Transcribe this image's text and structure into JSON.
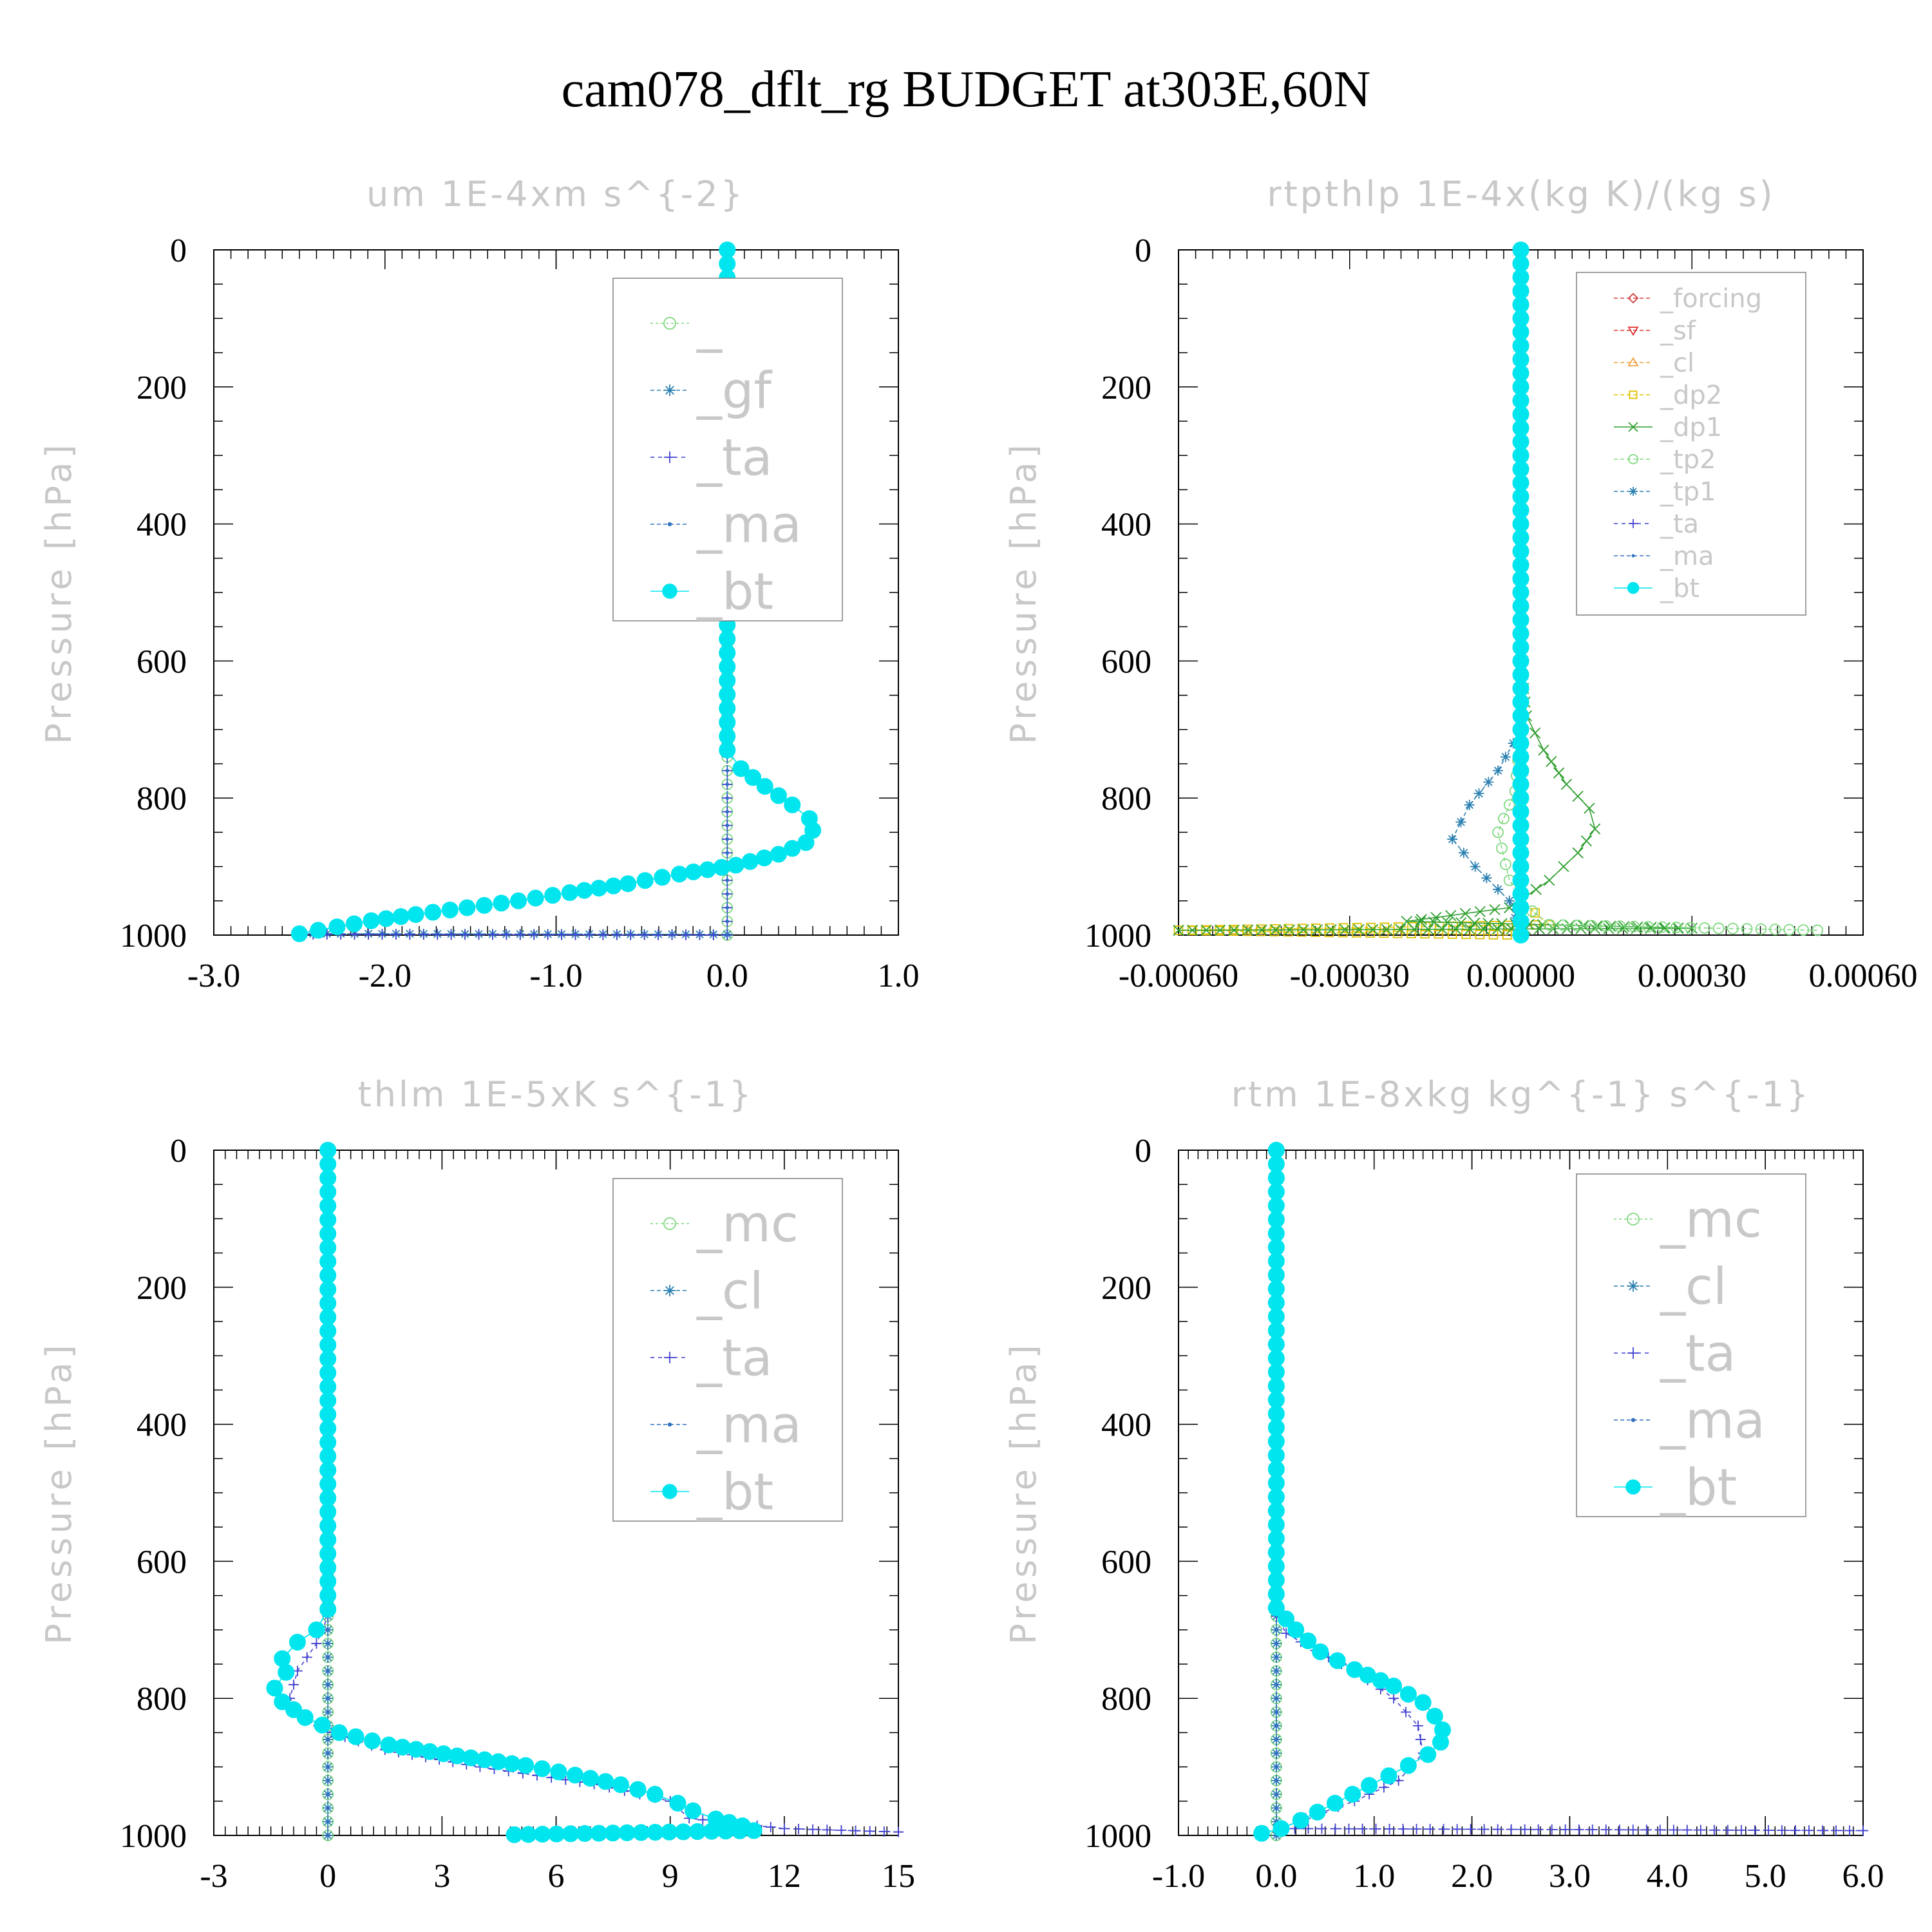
{
  "figure_title": "cam078_dflt_rg  BUDGET at303E,60N",
  "chart_data": [
    {
      "type": "line",
      "title": "um   1E-4xm s^{-2}",
      "ylabel": "Pressure [hPa]",
      "xlim": [
        -3.0,
        1.0
      ],
      "ylim": [
        1000,
        0
      ],
      "xticks": [
        "-3.0",
        "-2.0",
        "-1.0",
        "0.0",
        "1.0"
      ],
      "xtick_values": [
        -3,
        -2,
        -1,
        0,
        1
      ],
      "yticks": [
        "0",
        "200",
        "400",
        "600",
        "800",
        "1000"
      ],
      "legend_size": "large",
      "series": [
        {
          "name": "_",
          "color": "#7fd87f",
          "marker": "circle-open",
          "dash": "4,4",
          "points": [
            [
              0,
              0
            ],
            [
              0,
              100
            ],
            [
              0,
              200
            ],
            [
              0,
              300
            ],
            [
              0,
              400
            ],
            [
              0,
              500
            ],
            [
              0,
              600
            ],
            [
              0,
              700
            ],
            [
              0,
              800
            ],
            [
              0,
              900
            ],
            [
              0,
              1000
            ]
          ]
        },
        {
          "name": "_gf",
          "color": "#2a80b0",
          "marker": "star",
          "dash": "6,4",
          "points": [
            [
              0,
              0
            ],
            [
              0,
              200
            ],
            [
              0,
              400
            ],
            [
              0,
              600
            ],
            [
              0,
              730
            ],
            [
              0.08,
              757
            ],
            [
              0.22,
              783
            ],
            [
              0.38,
              810
            ],
            [
              0.48,
              830
            ],
            [
              0.5,
              847
            ],
            [
              0.46,
              865
            ],
            [
              0.3,
              882
            ],
            [
              0.05,
              898
            ],
            [
              -0.28,
              911
            ],
            [
              -0.58,
              925
            ],
            [
              -0.92,
              938
            ],
            [
              -1.22,
              950
            ],
            [
              -1.52,
              960
            ],
            [
              -1.82,
              970
            ],
            [
              -2.08,
              979
            ],
            [
              -2.28,
              988
            ],
            [
              -2.5,
              998
            ],
            [
              0,
              999
            ]
          ]
        },
        {
          "name": "_ta",
          "color": "#4040d0",
          "marker": "plus",
          "dash": "6,6",
          "points": [
            [
              0,
              0
            ],
            [
              0,
              1000
            ],
            [
              -2.5,
              999
            ]
          ]
        },
        {
          "name": "_ma",
          "color": "#3070c0",
          "marker": "dot",
          "dash": "6,4",
          "points": [
            [
              0,
              0
            ],
            [
              0,
              1000
            ]
          ]
        },
        {
          "name": "_bt",
          "color": "#00e5ee",
          "marker": "filled",
          "dash": "",
          "points": [
            [
              0,
              0
            ],
            [
              0,
              730
            ],
            [
              0.08,
              757
            ],
            [
              0.22,
              783
            ],
            [
              0.38,
              810
            ],
            [
              0.48,
              830
            ],
            [
              0.5,
              847
            ],
            [
              0.46,
              865
            ],
            [
              0.3,
              882
            ],
            [
              0.05,
              898
            ],
            [
              -0.28,
              911
            ],
            [
              -0.58,
              925
            ],
            [
              -0.92,
              938
            ],
            [
              -1.22,
              950
            ],
            [
              -1.52,
              960
            ],
            [
              -1.82,
              970
            ],
            [
              -2.08,
              979
            ],
            [
              -2.28,
              988
            ],
            [
              -2.5,
              998
            ]
          ]
        }
      ]
    },
    {
      "type": "line",
      "title": "rtpthlp   1E-4x(kg K)/(kg s)",
      "ylabel": "Pressure [hPa]",
      "xlim": [
        -0.0006,
        0.0006
      ],
      "ylim": [
        1000,
        0
      ],
      "xticks": [
        "-0.00060",
        "-0.00030",
        "0.00000",
        "0.00030",
        "0.00060"
      ],
      "xtick_values": [
        -0.0006,
        -0.0003,
        0,
        0.0003,
        0.0006
      ],
      "yticks": [
        "0",
        "200",
        "400",
        "600",
        "800",
        "1000"
      ],
      "legend_size": "small",
      "series": [
        {
          "name": "_forcing",
          "color": "#d04040",
          "marker": "diamond",
          "dash": "6,4",
          "points": [
            [
              0,
              0
            ],
            [
              0,
              1000
            ]
          ]
        },
        {
          "name": "_sf",
          "color": "#e03030",
          "marker": "tri-down",
          "dash": "6,4",
          "points": [
            [
              0,
              0
            ],
            [
              0,
              1000
            ]
          ]
        },
        {
          "name": "_cl",
          "color": "#f0a040",
          "marker": "tri-up",
          "dash": "6,4",
          "points": [
            [
              0,
              0
            ],
            [
              0,
              1000
            ]
          ]
        },
        {
          "name": "_dp2",
          "color": "#e0c000",
          "marker": "square",
          "dash": "6,4",
          "points": [
            [
              0,
              0
            ],
            [
              0,
              950
            ],
            [
              5e-05,
              985
            ],
            [
              -0.0006,
              993
            ],
            [
              0,
              1000
            ]
          ]
        },
        {
          "name": "_dp1",
          "color": "#30a030",
          "marker": "cross",
          "dash": "",
          "points": [
            [
              0,
              0
            ],
            [
              0,
              600
            ],
            [
              1e-05,
              680
            ],
            [
              4e-05,
              730
            ],
            [
              8e-05,
              780
            ],
            [
              0.00012,
              815
            ],
            [
              0.00013,
              845
            ],
            [
              0.0001,
              880
            ],
            [
              5e-05,
              920
            ],
            [
              -2e-05,
              960
            ],
            [
              -0.0002,
              980
            ],
            [
              0.0003,
              990
            ],
            [
              -0.0006,
              993
            ]
          ]
        },
        {
          "name": "_tp2",
          "color": "#7fd87f",
          "marker": "circle-open",
          "dash": "6,4",
          "points": [
            [
              0,
              0
            ],
            [
              0,
              700
            ],
            [
              -1e-05,
              790
            ],
            [
              -4e-05,
              850
            ],
            [
              -2e-05,
              920
            ],
            [
              2e-05,
              965
            ],
            [
              5e-05,
              985
            ],
            [
              0.00052,
              993
            ]
          ]
        },
        {
          "name": "_tp1",
          "color": "#2a80b0",
          "marker": "star",
          "dash": "6,4",
          "points": [
            [
              0,
              0
            ],
            [
              0,
              700
            ],
            [
              -4e-05,
              760
            ],
            [
              -9e-05,
              810
            ],
            [
              -0.00012,
              860
            ],
            [
              -8e-05,
              900
            ],
            [
              -2e-05,
              950
            ],
            [
              0,
              1000
            ]
          ]
        },
        {
          "name": "_ta",
          "color": "#4040d0",
          "marker": "plus",
          "dash": "6,6",
          "points": [
            [
              0,
              0
            ],
            [
              0,
              1000
            ]
          ]
        },
        {
          "name": "_ma",
          "color": "#3070c0",
          "marker": "dot",
          "dash": "6,4",
          "points": [
            [
              0,
              0
            ],
            [
              0,
              1000
            ]
          ]
        },
        {
          "name": "_bt",
          "color": "#00e5ee",
          "marker": "filled",
          "dash": "",
          "points": [
            [
              0,
              0
            ],
            [
              0,
              1000
            ]
          ]
        }
      ]
    },
    {
      "type": "line",
      "title": "thlm   1E-5xK s^{-1}",
      "ylabel": "Pressure [hPa]",
      "xlim": [
        -3,
        15
      ],
      "ylim": [
        1000,
        0
      ],
      "xticks": [
        "-3",
        "0",
        "3",
        "6",
        "9",
        "12",
        "15"
      ],
      "xtick_values": [
        -3,
        0,
        3,
        6,
        9,
        12,
        15
      ],
      "yticks": [
        "0",
        "200",
        "400",
        "600",
        "800",
        "1000"
      ],
      "legend_size": "large",
      "series": [
        {
          "name": "_mc",
          "color": "#7fd87f",
          "marker": "circle-open",
          "dash": "4,4",
          "points": [
            [
              0,
              0
            ],
            [
              0,
              1000
            ]
          ]
        },
        {
          "name": "_cl",
          "color": "#2a80b0",
          "marker": "star",
          "dash": "6,4",
          "points": [
            [
              0,
              0
            ],
            [
              0,
              1000
            ]
          ]
        },
        {
          "name": "_ta",
          "color": "#4040d0",
          "marker": "plus",
          "dash": "6,6",
          "points": [
            [
              0,
              0
            ],
            [
              0,
              680
            ],
            [
              -0.3,
              720
            ],
            [
              -0.8,
              760
            ],
            [
              -1.0,
              800
            ],
            [
              -0.6,
              830
            ],
            [
              0.1,
              850
            ],
            [
              1.5,
              875
            ],
            [
              4.0,
              900
            ],
            [
              7.0,
              925
            ],
            [
              9.0,
              950
            ],
            [
              9.5,
              975
            ],
            [
              12.0,
              990
            ],
            [
              15,
              995
            ]
          ]
        },
        {
          "name": "_ma",
          "color": "#3070c0",
          "marker": "dot",
          "dash": "6,4",
          "points": [
            [
              0,
              0
            ],
            [
              0,
              1000
            ]
          ]
        },
        {
          "name": "_bt",
          "color": "#00e5ee",
          "marker": "filled",
          "dash": "",
          "points": [
            [
              0,
              0
            ],
            [
              0,
              670
            ],
            [
              -0.3,
              700
            ],
            [
              -0.8,
              718
            ],
            [
              -1.2,
              742
            ],
            [
              -1.1,
              762
            ],
            [
              -1.4,
              785
            ],
            [
              -1.2,
              805
            ],
            [
              -0.6,
              828
            ],
            [
              0.3,
              850
            ],
            [
              1.6,
              868
            ],
            [
              3.4,
              884
            ],
            [
              5.2,
              898
            ],
            [
              6.5,
              912
            ],
            [
              7.7,
              926
            ],
            [
              8.6,
              940
            ],
            [
              9.2,
              953
            ],
            [
              9.6,
              964
            ],
            [
              10.2,
              976
            ],
            [
              10.9,
              986
            ],
            [
              11.2,
              993
            ],
            [
              4.9,
              999
            ]
          ]
        }
      ]
    },
    {
      "type": "line",
      "title": "rtm   1E-8xkg kg^{-1} s^{-1}",
      "ylabel": "Pressure [hPa]",
      "xlim": [
        -1.0,
        6.0
      ],
      "ylim": [
        1000,
        0
      ],
      "xticks": [
        "-1.0",
        "0.0",
        "1.0",
        "2.0",
        "3.0",
        "4.0",
        "5.0",
        "6.0"
      ],
      "xtick_values": [
        -1,
        0,
        1,
        2,
        3,
        4,
        5,
        6
      ],
      "yticks": [
        "0",
        "200",
        "400",
        "600",
        "800",
        "1000"
      ],
      "legend_size": "large",
      "series": [
        {
          "name": "_mc",
          "color": "#7fd87f",
          "marker": "circle-open",
          "dash": "4,4",
          "points": [
            [
              0,
              0
            ],
            [
              0,
              1000
            ]
          ]
        },
        {
          "name": "_cl",
          "color": "#2a80b0",
          "marker": "star",
          "dash": "6,4",
          "points": [
            [
              0,
              0
            ],
            [
              0,
              1000
            ]
          ]
        },
        {
          "name": "_ta",
          "color": "#4040d0",
          "marker": "plus",
          "dash": "6,6",
          "points": [
            [
              0,
              0
            ],
            [
              0,
              680
            ],
            [
              0.1,
              705
            ],
            [
              0.4,
              730
            ],
            [
              0.8,
              760
            ],
            [
              1.2,
              800
            ],
            [
              1.45,
              840
            ],
            [
              1.5,
              880
            ],
            [
              1.25,
              920
            ],
            [
              0.8,
              950
            ],
            [
              0.3,
              975
            ],
            [
              0.05,
              990
            ],
            [
              6.0,
              993
            ]
          ]
        },
        {
          "name": "_ma",
          "color": "#3070c0",
          "marker": "dot",
          "dash": "6,4",
          "points": [
            [
              0,
              0
            ],
            [
              0,
              1000
            ]
          ]
        },
        {
          "name": "_bt",
          "color": "#00e5ee",
          "marker": "filled",
          "dash": "",
          "points": [
            [
              0,
              0
            ],
            [
              0,
              668
            ],
            [
              0.2,
              700
            ],
            [
              0.45,
              732
            ],
            [
              0.8,
              758
            ],
            [
              1.2,
              782
            ],
            [
              1.5,
              806
            ],
            [
              1.62,
              826
            ],
            [
              1.7,
              846
            ],
            [
              1.68,
              864
            ],
            [
              1.55,
              882
            ],
            [
              1.35,
              898
            ],
            [
              1.15,
              913
            ],
            [
              0.95,
              927
            ],
            [
              0.78,
              940
            ],
            [
              0.6,
              953
            ],
            [
              0.42,
              966
            ],
            [
              0.25,
              978
            ],
            [
              0.05,
              990
            ],
            [
              -0.15,
              997
            ]
          ]
        }
      ]
    }
  ]
}
